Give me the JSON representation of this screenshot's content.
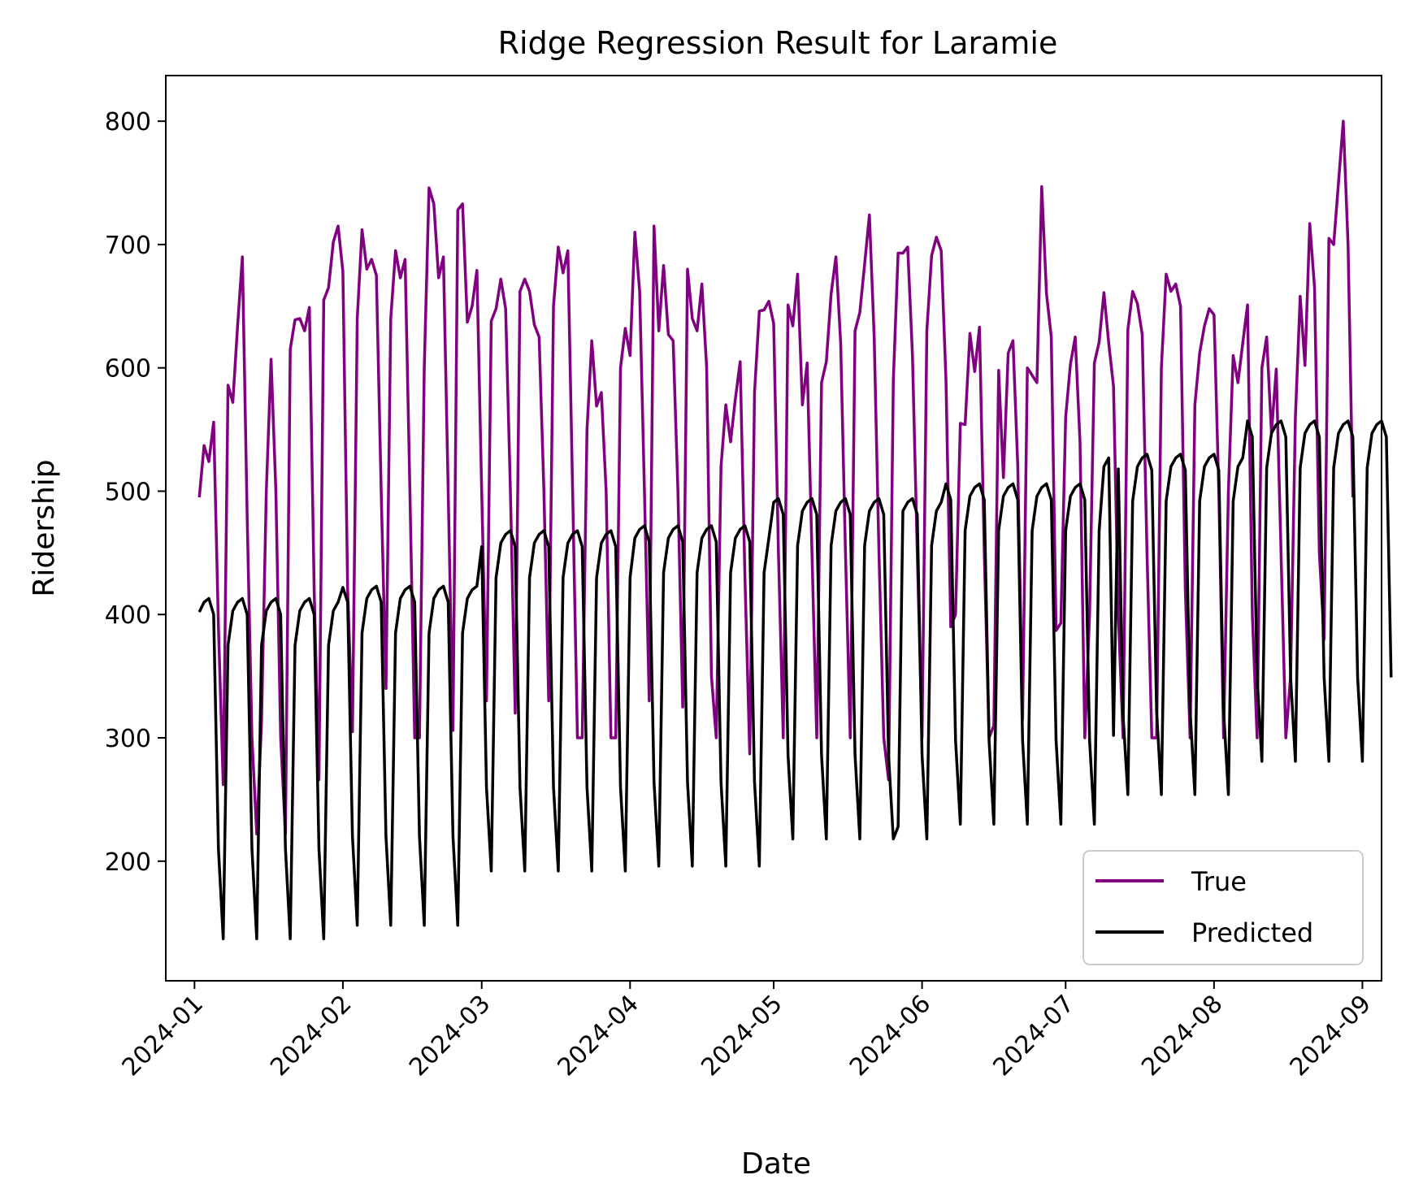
{
  "chart_data": {
    "type": "line",
    "title": "Ridge Regression Result for Laramie",
    "xlabel": "Date",
    "ylabel": "Ridership",
    "x_start": "2024-01-02",
    "x_end": "2024-08-31",
    "xlim": [
      "2023-12-26",
      "2024-09-05"
    ],
    "ylim": [
      103,
      837
    ],
    "x_ticks": [
      "2024-01",
      "2024-02",
      "2024-03",
      "2024-04",
      "2024-05",
      "2024-06",
      "2024-07",
      "2024-08",
      "2024-09"
    ],
    "y_ticks": [
      200,
      300,
      400,
      500,
      600,
      700,
      800
    ],
    "grid": false,
    "legend_position": "bottom-right",
    "series": [
      {
        "name": "True",
        "color": "#800080",
        "values": [
          495,
          537,
          524,
          556,
          390,
          262,
          586,
          572,
          634,
          690,
          480,
          300,
          222,
          312,
          500,
          607,
          500,
          300,
          222,
          615,
          639,
          640,
          630,
          649,
          420,
          266,
          655,
          665,
          702,
          715,
          678,
          420,
          305,
          640,
          712,
          680,
          688,
          675,
          500,
          340,
          640,
          695,
          673,
          688,
          500,
          300,
          300,
          600,
          746,
          733,
          673,
          690,
          500,
          306,
          728,
          733,
          637,
          650,
          679,
          500,
          330,
          638,
          648,
          672,
          648,
          500,
          320,
          662,
          672,
          662,
          635,
          625,
          500,
          330,
          650,
          698,
          677,
          695,
          500,
          300,
          300,
          550,
          622,
          569,
          580,
          500,
          300,
          300,
          600,
          632,
          610,
          710,
          662,
          500,
          330,
          715,
          630,
          683,
          627,
          622,
          500,
          325,
          680,
          640,
          630,
          668,
          600,
          350,
          300,
          520,
          570,
          540,
          575,
          605,
          430,
          287,
          580,
          646,
          647,
          654,
          636,
          450,
          300,
          651,
          634,
          676,
          570,
          604,
          450,
          300,
          588,
          605,
          660,
          690,
          620,
          450,
          300,
          630,
          645,
          684,
          724,
          625,
          450,
          300,
          266,
          590,
          693,
          693,
          698,
          610,
          450,
          300,
          630,
          691,
          706,
          695,
          590,
          390,
          400,
          555,
          554,
          628,
          597,
          633,
          450,
          300,
          310,
          598,
          511,
          612,
          622,
          520,
          315,
          600,
          594,
          588,
          747,
          660,
          625,
          387,
          393,
          560,
          603,
          625,
          540,
          300,
          400,
          604,
          621,
          661,
          620,
          585,
          400,
          300,
          631,
          662,
          652,
          627,
          450,
          300,
          300,
          600,
          676,
          662,
          668,
          650,
          420,
          300,
          570,
          612,
          634,
          648,
          643,
          500,
          300,
          500,
          610,
          588,
          620,
          651,
          400,
          300,
          600,
          625,
          547,
          599,
          450,
          300,
          350,
          560,
          658,
          602,
          717,
          665,
          450,
          380,
          705,
          700,
          750,
          800,
          700,
          495
        ]
      },
      {
        "name": "Predicted",
        "color": "#000000",
        "values": [
          402,
          410,
          413,
          400,
          210,
          137,
          375,
          403,
          410,
          413,
          400,
          210,
          137,
          375,
          403,
          410,
          413,
          400,
          210,
          137,
          375,
          403,
          410,
          413,
          400,
          210,
          137,
          375,
          403,
          410,
          422,
          410,
          220,
          148,
          385,
          413,
          420,
          423,
          410,
          220,
          148,
          385,
          413,
          420,
          423,
          410,
          220,
          148,
          385,
          413,
          420,
          423,
          410,
          220,
          148,
          385,
          413,
          420,
          423,
          455,
          260,
          192,
          430,
          458,
          465,
          468,
          455,
          260,
          192,
          430,
          458,
          465,
          468,
          455,
          260,
          192,
          430,
          458,
          465,
          468,
          455,
          260,
          192,
          430,
          458,
          465,
          468,
          455,
          260,
          192,
          430,
          462,
          469,
          472,
          459,
          264,
          196,
          434,
          462,
          469,
          472,
          459,
          264,
          196,
          434,
          462,
          469,
          472,
          459,
          264,
          196,
          434,
          462,
          469,
          472,
          459,
          264,
          196,
          434,
          462,
          491,
          494,
          481,
          286,
          218,
          456,
          484,
          491,
          494,
          481,
          286,
          218,
          456,
          484,
          491,
          494,
          481,
          286,
          218,
          456,
          484,
          491,
          494,
          481,
          286,
          218,
          228,
          484,
          491,
          494,
          481,
          286,
          218,
          456,
          484,
          491,
          506,
          493,
          298,
          230,
          468,
          496,
          503,
          506,
          493,
          298,
          230,
          468,
          496,
          503,
          506,
          493,
          298,
          230,
          468,
          496,
          503,
          506,
          493,
          298,
          230,
          468,
          496,
          503,
          506,
          493,
          298,
          230,
          468,
          520,
          527,
          302,
          518,
          318,
          254,
          492,
          520,
          527,
          530,
          517,
          322,
          254,
          492,
          520,
          527,
          530,
          517,
          322,
          254,
          492,
          520,
          527,
          530,
          517,
          322,
          254,
          492,
          520,
          527,
          557,
          544,
          349,
          281,
          519,
          547,
          554,
          557,
          544,
          349,
          281,
          519,
          547,
          554,
          557,
          544,
          349,
          281,
          519,
          547,
          554,
          557,
          544,
          349,
          281,
          519,
          547,
          554,
          557,
          544,
          349
        ]
      }
    ]
  }
}
